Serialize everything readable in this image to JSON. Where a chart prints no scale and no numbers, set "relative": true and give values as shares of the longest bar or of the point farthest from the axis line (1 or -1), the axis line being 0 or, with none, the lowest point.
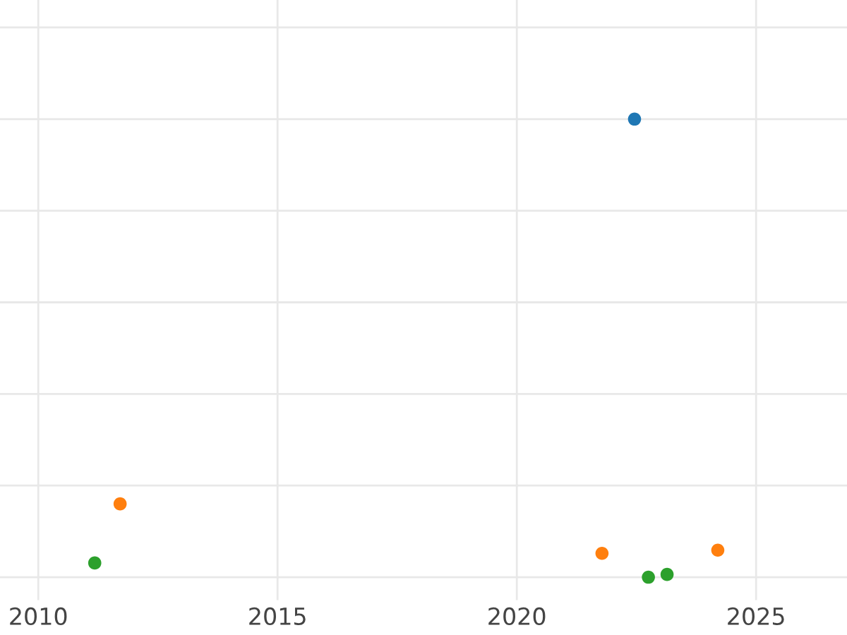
{
  "chart_data": {
    "type": "scatter",
    "relative": true,
    "xlim": [
      2009.2,
      2026.9
    ],
    "xticks": [
      2010,
      2015,
      2020,
      2025
    ],
    "grid": true,
    "marker": "circle",
    "series": [
      {
        "color": "#1f77b4",
        "x": [
          2022.46
        ],
        "values": [
          1
        ]
      },
      {
        "color": "#ff7f0e",
        "x": [
          2011.71,
          2021.78,
          2024.2
        ],
        "values": [
          0.16,
          0.052,
          0.059
        ]
      },
      {
        "color": "#2ca02c",
        "x": [
          2011.18,
          2022.75,
          2023.14
        ],
        "values": [
          0.031,
          0,
          0.006
        ]
      }
    ]
  }
}
